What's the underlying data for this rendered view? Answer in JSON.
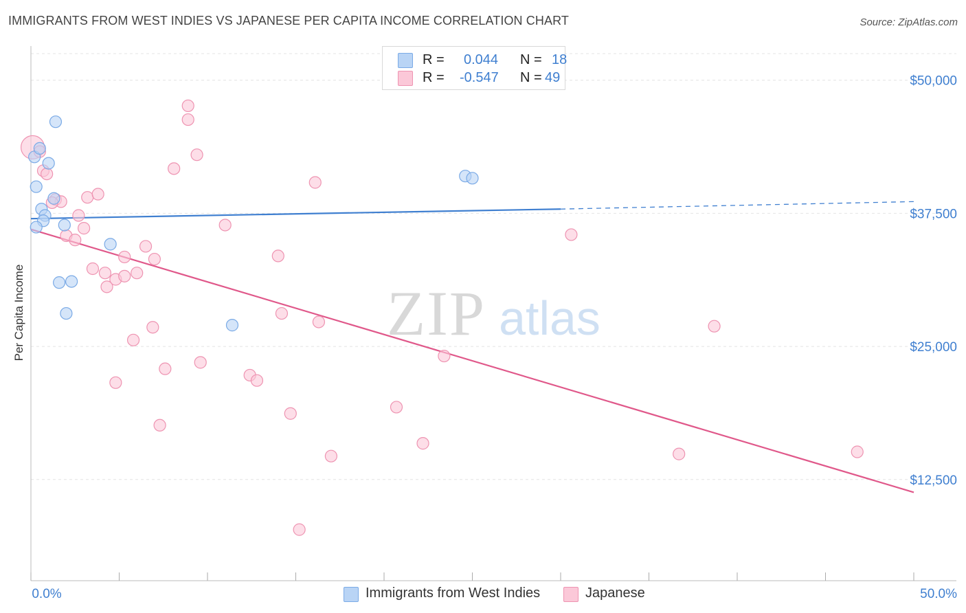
{
  "title": "IMMIGRANTS FROM WEST INDIES VS JAPANESE PER CAPITA INCOME CORRELATION CHART",
  "source": "Source: ZipAtlas.com",
  "watermark": {
    "zip": "ZIP",
    "atlas": "atlas"
  },
  "legend": {
    "r_label": "R =",
    "n_label": "N =",
    "rows": [
      {
        "r": "0.044",
        "n": "18",
        "fill": "#b9d4f5",
        "stroke": "#7aaae6"
      },
      {
        "r": "-0.547",
        "n": "49",
        "fill": "#fbc8d8",
        "stroke": "#ee93b1"
      }
    ]
  },
  "bottom_legend": [
    {
      "label": "Immigrants from West Indies",
      "fill": "#b9d4f5",
      "stroke": "#7aaae6"
    },
    {
      "label": "Japanese",
      "fill": "#fbc8d8",
      "stroke": "#ee93b1"
    }
  ],
  "chart_data": {
    "type": "scatter",
    "title": "IMMIGRANTS FROM WEST INDIES VS JAPANESE PER CAPITA INCOME CORRELATION CHART",
    "xlabel": "",
    "ylabel": "Per Capita Income",
    "xlim": [
      0,
      50
    ],
    "ylim": [
      3000,
      52500
    ],
    "x_tick_labels": [
      "0.0%",
      "50.0%"
    ],
    "y_ticks": [
      12500,
      25000,
      37500,
      50000
    ],
    "y_tick_labels": [
      "$12,500",
      "$25,000",
      "$37,500",
      "$50,000"
    ],
    "grid": true,
    "series": [
      {
        "name": "Immigrants from West Indies",
        "color": "#3f7fd0",
        "point_fill": "#b9d4f5",
        "point_stroke": "#7aaae6",
        "points": [
          [
            0.2,
            42800
          ],
          [
            0.5,
            43600
          ],
          [
            1.4,
            46100
          ],
          [
            0.3,
            40000
          ],
          [
            1.0,
            42200
          ],
          [
            1.3,
            38900
          ],
          [
            0.6,
            37900
          ],
          [
            0.8,
            37300
          ],
          [
            0.7,
            36800
          ],
          [
            0.3,
            36200
          ],
          [
            1.9,
            36400
          ],
          [
            4.5,
            34600
          ],
          [
            1.6,
            31000
          ],
          [
            2.3,
            31100
          ],
          [
            2.0,
            28100
          ],
          [
            11.4,
            27000
          ],
          [
            24.6,
            41000
          ],
          [
            25.0,
            40800
          ]
        ],
        "trend": {
          "x0": 0,
          "y0": 37000,
          "x1": 30,
          "y1": 37900,
          "dash_to": 50,
          "dash_y": 38600
        }
      },
      {
        "name": "Japanese",
        "color": "#e0588a",
        "point_fill": "#fbc8d8",
        "point_stroke": "#ee93b1",
        "points": [
          [
            0.1,
            43700
          ],
          [
            0.5,
            43300
          ],
          [
            0.7,
            41500
          ],
          [
            0.9,
            41200
          ],
          [
            1.4,
            38800
          ],
          [
            1.7,
            38600
          ],
          [
            3.2,
            39000
          ],
          [
            3.8,
            39300
          ],
          [
            2.7,
            37300
          ],
          [
            2.0,
            35400
          ],
          [
            2.5,
            35000
          ],
          [
            3.0,
            36100
          ],
          [
            8.1,
            41700
          ],
          [
            8.9,
            46300
          ],
          [
            8.9,
            47600
          ],
          [
            9.4,
            43000
          ],
          [
            11.0,
            36400
          ],
          [
            16.1,
            40400
          ],
          [
            14.0,
            33500
          ],
          [
            6.5,
            34400
          ],
          [
            5.3,
            33400
          ],
          [
            7.0,
            33200
          ],
          [
            3.5,
            32300
          ],
          [
            4.2,
            31900
          ],
          [
            4.8,
            31300
          ],
          [
            5.3,
            31600
          ],
          [
            6.0,
            31900
          ],
          [
            4.3,
            30600
          ],
          [
            30.6,
            35500
          ],
          [
            14.2,
            28100
          ],
          [
            16.3,
            27300
          ],
          [
            23.4,
            24100
          ],
          [
            6.9,
            26800
          ],
          [
            5.8,
            25600
          ],
          [
            38.7,
            26900
          ],
          [
            7.6,
            22900
          ],
          [
            9.6,
            23500
          ],
          [
            12.4,
            22300
          ],
          [
            12.8,
            21800
          ],
          [
            4.8,
            21600
          ],
          [
            20.7,
            19300
          ],
          [
            14.7,
            18700
          ],
          [
            7.3,
            17600
          ],
          [
            22.2,
            15900
          ],
          [
            17.0,
            14700
          ],
          [
            36.7,
            14900
          ],
          [
            46.8,
            15100
          ],
          [
            15.2,
            7800
          ],
          [
            1.2,
            38500
          ]
        ],
        "trend": {
          "x0": 0,
          "y0": 36000,
          "x1": 50,
          "y1": 11300
        }
      }
    ]
  }
}
